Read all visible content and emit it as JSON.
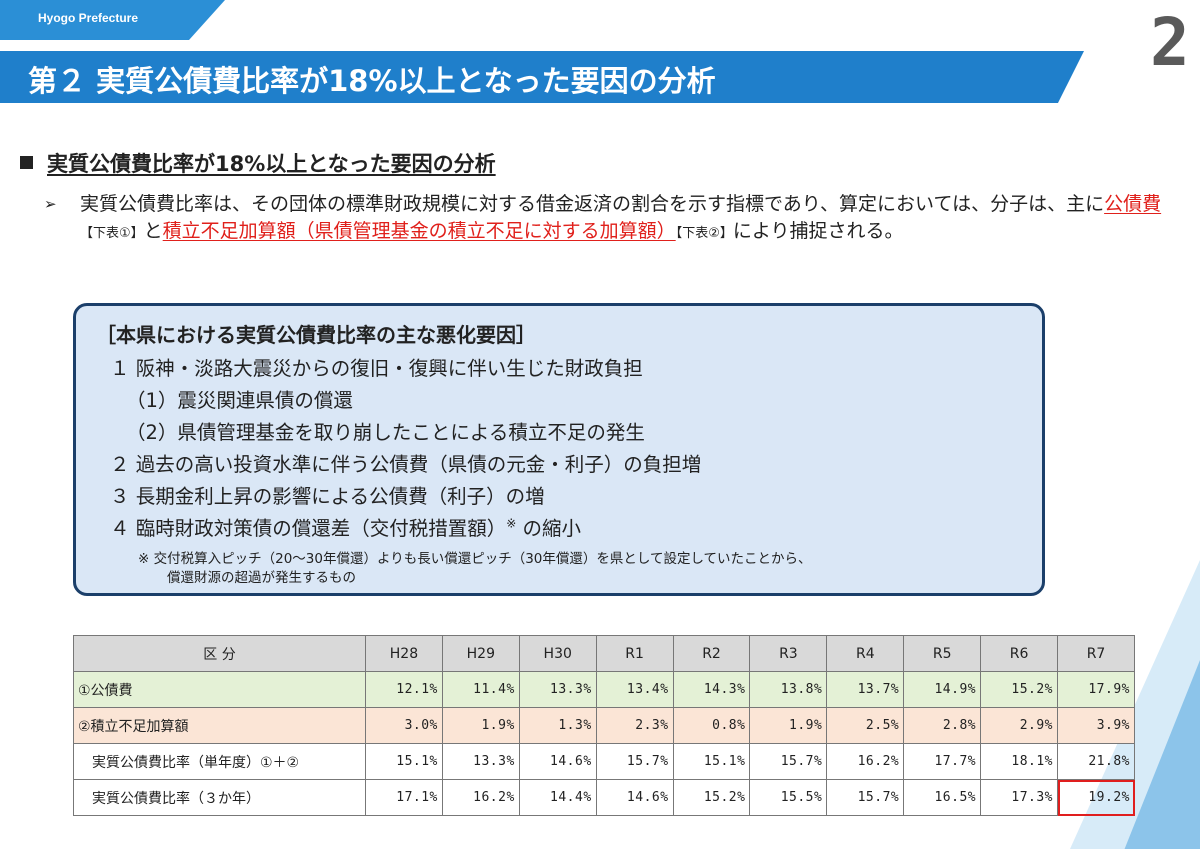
{
  "header": {
    "tag": "Hyogo Prefecture",
    "title": "第２ 実質公債費比率が18%以上となった要因の分析",
    "page_number": "2"
  },
  "section": {
    "heading": "実質公債費比率が18%以上となった要因の分析"
  },
  "paragraph": {
    "lead": "実質公債費比率は、その団体の標準財政規模に対する借金返済の割合を示す指標であり、算定においては、分子は、主に",
    "term1": "公債費",
    "ref1": "【下表①】",
    "mid": "と",
    "term2": "積立不足加算額（県債管理基金の積立不足に対する加算額）",
    "ref2": "【下表②】",
    "tail": "により捕捉される。"
  },
  "box": {
    "title": "［本県における実質公債費比率の主な悪化要因］",
    "items": [
      "１ 阪神・淡路大震災からの復旧・復興に伴い生じた財政負担",
      "（1）震災関連県債の償還",
      "（2）県債管理基金を取り崩したことによる積立不足の発生",
      "２ 過去の高い投資水準に伴う公債費（県債の元金・利子）の負担増",
      "３ 長期金利上昇の影響による公債費（利子）の増",
      "４ 臨時財政対策債の償還差（交付税措置額）",
      "※",
      "の縮小"
    ],
    "note_line1": "※ 交付税算入ピッチ（20～30年償還）よりも長い償還ピッチ（30年償還）を県として設定していたことから、",
    "note_line2": "償還財源の超過が発生するもの"
  },
  "table": {
    "header": [
      "区 分",
      "H28",
      "H29",
      "H30",
      "R1",
      "R2",
      "R3",
      "R4",
      "R5",
      "R6",
      "R7"
    ],
    "rows": [
      {
        "label": "①公債費",
        "values": [
          "12.1%",
          "11.4%",
          "13.3%",
          "13.4%",
          "14.3%",
          "13.8%",
          "13.7%",
          "14.9%",
          "15.2%",
          "17.9%"
        ]
      },
      {
        "label": "②積立不足加算額",
        "values": [
          "3.0%",
          "1.9%",
          "1.3%",
          "2.3%",
          "0.8%",
          "1.9%",
          "2.5%",
          "2.8%",
          "2.9%",
          "3.9%"
        ]
      },
      {
        "label": "実質公債費比率（単年度）①＋②",
        "values": [
          "15.1%",
          "13.3%",
          "14.6%",
          "15.7%",
          "15.1%",
          "15.7%",
          "16.2%",
          "17.7%",
          "18.1%",
          "21.8%"
        ]
      },
      {
        "label": "実質公債費比率（３か年）",
        "values": [
          "17.1%",
          "16.2%",
          "14.4%",
          "14.6%",
          "15.2%",
          "15.5%",
          "15.7%",
          "16.5%",
          "17.3%",
          "19.2%"
        ]
      }
    ]
  },
  "colors": {
    "title_blue": "#1f7fcb",
    "box_fill": "#dae7f6",
    "box_border": "#1b3f6a",
    "highlight_red": "#e0201b"
  }
}
